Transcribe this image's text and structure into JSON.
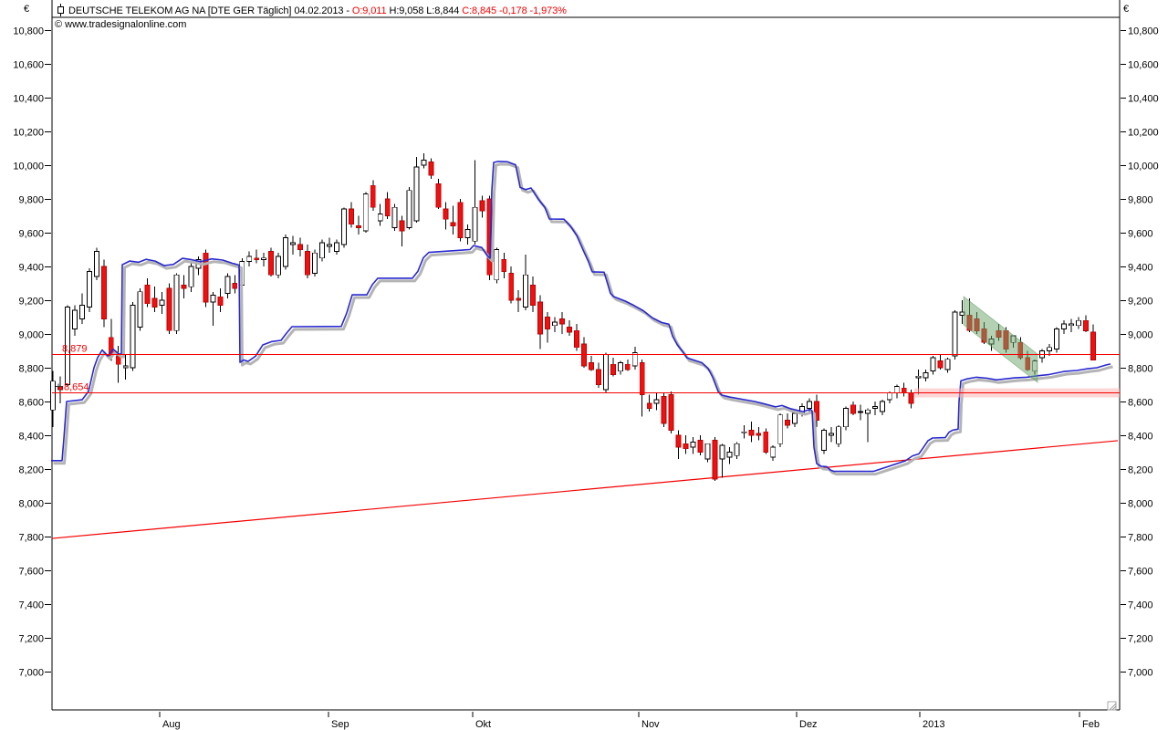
{
  "header": {
    "currency_left": "€",
    "currency_right": "€",
    "icon": "candlestick-icon",
    "title_segments": [
      {
        "text": "DEUTSCHE TELEKOM AG NA [DTE GER  Täglich] 04.02.2013 - ",
        "color": "#000000"
      },
      {
        "text": "O:9,011 ",
        "color": "#f40000"
      },
      {
        "text": "H:9,058 L:8,844 ",
        "color": "#000000"
      },
      {
        "text": "C:8,845 -0,178 -1,973%",
        "color": "#f40000"
      }
    ],
    "watermark": "© www.tradesignalonline.com"
  },
  "axes": {
    "y_ticks": [
      {
        "label": "10,800",
        "value": 10800
      },
      {
        "label": "10,600",
        "value": 10600
      },
      {
        "label": "10,400",
        "value": 10400
      },
      {
        "label": "10,200",
        "value": 10200
      },
      {
        "label": "10,000",
        "value": 10000
      },
      {
        "label": "9,800",
        "value": 9800
      },
      {
        "label": "9,600",
        "value": 9600
      },
      {
        "label": "9,400",
        "value": 9400
      },
      {
        "label": "9,200",
        "value": 9200
      },
      {
        "label": "9,000",
        "value": 9000
      },
      {
        "label": "8,800",
        "value": 8800
      },
      {
        "label": "8,600",
        "value": 8600
      },
      {
        "label": "8,400",
        "value": 8400
      },
      {
        "label": "8,200",
        "value": 8200
      },
      {
        "label": "8,000",
        "value": 8000
      },
      {
        "label": "7,800",
        "value": 7800
      },
      {
        "label": "7,600",
        "value": 7600
      },
      {
        "label": "7,400",
        "value": 7400
      },
      {
        "label": "7,200",
        "value": 7200
      },
      {
        "label": "7,000",
        "value": 7000
      }
    ],
    "x_ticks": [
      {
        "label": "Aug",
        "x": 175
      },
      {
        "label": "Sep",
        "x": 360
      },
      {
        "label": "Okt",
        "x": 518
      },
      {
        "label": "Nov",
        "x": 700
      },
      {
        "label": "Dez",
        "x": 873
      },
      {
        "label": "2013",
        "x": 1008
      },
      {
        "label": "Feb",
        "x": 1183
      }
    ]
  },
  "chart_data": {
    "type": "candlestick",
    "title": "DEUTSCHE TELEKOM AG NA [DTE GER Täglich]",
    "date": "04.02.2013",
    "last_quote": {
      "open": "9,011",
      "high": "9,058",
      "low": "8,844",
      "close": "8,845",
      "change": "-0,178",
      "change_pct": "-1,973%"
    },
    "ylim": [
      6860,
      10860
    ],
    "grid": false,
    "layout": {
      "y_top": 33,
      "y_base": 10800,
      "ppu": 0.185,
      "x_start": 58,
      "x_step": 7.972,
      "frame": {
        "left": 57,
        "right": 1227,
        "bottom": 778,
        "title_underline_y": 19
      }
    },
    "colors": {
      "up": "#ffffff",
      "down": "#f01010",
      "down_stroke": "#b40404",
      "wick": "#000000",
      "stop_line": "#2828cf",
      "stop_shadow": "#b4b4b4",
      "level": "#f40000",
      "channel_fill": "#69a369",
      "band_fill": "#ffb4b4"
    },
    "candles": [
      [
        8550,
        8780,
        8450,
        8720
      ],
      [
        8690,
        8750,
        8590,
        8670
      ],
      [
        8700,
        9170,
        8690,
        9160
      ],
      [
        9030,
        9170,
        8990,
        9140
      ],
      [
        9090,
        9240,
        9060,
        9170
      ],
      [
        9160,
        9390,
        9130,
        9370
      ],
      [
        9340,
        9510,
        9320,
        9490
      ],
      [
        9400,
        9440,
        9040,
        9090
      ],
      [
        8980,
        9090,
        8840,
        8870
      ],
      [
        8870,
        8930,
        8710,
        8820
      ],
      [
        8800,
        8880,
        8730,
        8810
      ],
      [
        8800,
        9190,
        8780,
        9170
      ],
      [
        9040,
        9270,
        9020,
        9250
      ],
      [
        9290,
        9330,
        9160,
        9180
      ],
      [
        9210,
        9280,
        9130,
        9160
      ],
      [
        9170,
        9250,
        9120,
        9200
      ],
      [
        9270,
        9300,
        9000,
        9020
      ],
      [
        9020,
        9360,
        9000,
        9350
      ],
      [
        9290,
        9350,
        9210,
        9270
      ],
      [
        9280,
        9420,
        9250,
        9400
      ],
      [
        9390,
        9460,
        9350,
        9440
      ],
      [
        9480,
        9500,
        9160,
        9190
      ],
      [
        9190,
        9250,
        9050,
        9230
      ],
      [
        9220,
        9270,
        9130,
        9170
      ],
      [
        9240,
        9360,
        9210,
        9340
      ],
      [
        9300,
        9350,
        9240,
        9270
      ],
      [
        9290,
        9450,
        9270,
        9430
      ],
      [
        9430,
        9490,
        9400,
        9460
      ],
      [
        9450,
        9500,
        9420,
        9440
      ],
      [
        9440,
        9480,
        9400,
        9450
      ],
      [
        9490,
        9510,
        9340,
        9350
      ],
      [
        9350,
        9480,
        9330,
        9460
      ],
      [
        9400,
        9590,
        9380,
        9570
      ],
      [
        9530,
        9580,
        9470,
        9540
      ],
      [
        9530,
        9570,
        9460,
        9500
      ],
      [
        9490,
        9530,
        9330,
        9350
      ],
      [
        9360,
        9500,
        9340,
        9480
      ],
      [
        9450,
        9560,
        9430,
        9540
      ],
      [
        9520,
        9570,
        9480,
        9530
      ],
      [
        9490,
        9560,
        9470,
        9540
      ],
      [
        9530,
        9750,
        9510,
        9740
      ],
      [
        9740,
        9780,
        9630,
        9650
      ],
      [
        9640,
        9700,
        9590,
        9630
      ],
      [
        9610,
        9840,
        9600,
        9830
      ],
      [
        9880,
        9910,
        9730,
        9750
      ],
      [
        9670,
        9770,
        9640,
        9710
      ],
      [
        9800,
        9840,
        9680,
        9700
      ],
      [
        9630,
        9770,
        9610,
        9750
      ],
      [
        9670,
        9700,
        9520,
        9610
      ],
      [
        9630,
        9870,
        9620,
        9850
      ],
      [
        9670,
        10050,
        9660,
        9990
      ],
      [
        10000,
        10070,
        9980,
        10030
      ],
      [
        10020,
        10040,
        9920,
        9940
      ],
      [
        9890,
        9920,
        9740,
        9750
      ],
      [
        9740,
        9780,
        9620,
        9680
      ],
      [
        9660,
        9760,
        9590,
        9640
      ],
      [
        9780,
        9800,
        9550,
        9570
      ],
      [
        9570,
        9650,
        9530,
        9620
      ],
      [
        9550,
        10030,
        9530,
        9750
      ],
      [
        9790,
        9820,
        9690,
        9730
      ],
      [
        9800,
        9820,
        9320,
        9350
      ],
      [
        9320,
        9510,
        9300,
        9500
      ],
      [
        9440,
        9480,
        9330,
        9370
      ],
      [
        9360,
        9400,
        9180,
        9200
      ],
      [
        9210,
        9260,
        9130,
        9200
      ],
      [
        9160,
        9470,
        9140,
        9350
      ],
      [
        9290,
        9340,
        9130,
        9170
      ],
      [
        9190,
        9230,
        8910,
        9000
      ],
      [
        9100,
        9130,
        8950,
        9030
      ],
      [
        9050,
        9100,
        9010,
        9070
      ],
      [
        9090,
        9130,
        9000,
        9060
      ],
      [
        9040,
        9080,
        8990,
        9010
      ],
      [
        9020,
        9060,
        8900,
        8920
      ],
      [
        8940,
        8980,
        8800,
        8810
      ],
      [
        8830,
        8870,
        8780,
        8790
      ],
      [
        8790,
        8830,
        8680,
        8700
      ],
      [
        8670,
        8890,
        8650,
        8880
      ],
      [
        8820,
        8860,
        8750,
        8760
      ],
      [
        8780,
        8840,
        8760,
        8830
      ],
      [
        8820,
        8850,
        8780,
        8790
      ],
      [
        8810,
        8924,
        8790,
        8890
      ],
      [
        8830,
        8850,
        8510,
        8640
      ],
      [
        8590,
        8640,
        8540,
        8560
      ],
      [
        8590,
        8650,
        8550,
        8610
      ],
      [
        8630,
        8650,
        8450,
        8470
      ],
      [
        8640,
        8660,
        8410,
        8430
      ],
      [
        8400,
        8430,
        8260,
        8330
      ],
      [
        8350,
        8400,
        8290,
        8320
      ],
      [
        8330,
        8390,
        8290,
        8360
      ],
      [
        8370,
        8400,
        8280,
        8300
      ],
      [
        8260,
        8350,
        8240,
        8350
      ],
      [
        8370,
        8390,
        8130,
        8140
      ],
      [
        8260,
        8350,
        8150,
        8340
      ],
      [
        8270,
        8330,
        8230,
        8300
      ],
      [
        8280,
        8360,
        8260,
        8350
      ],
      [
        8420,
        8460,
        8380,
        8420
      ],
      [
        8430,
        8480,
        8360,
        8400
      ],
      [
        8410,
        8450,
        8370,
        8400
      ],
      [
        8420,
        8440,
        8290,
        8300
      ],
      [
        8270,
        8340,
        8250,
        8330
      ],
      [
        8350,
        8530,
        8330,
        8520
      ],
      [
        8490,
        8530,
        8440,
        8460
      ],
      [
        8470,
        8540,
        8450,
        8530
      ],
      [
        8530,
        8590,
        8510,
        8570
      ],
      [
        8560,
        8620,
        8540,
        8600
      ],
      [
        8600,
        8640,
        8450,
        8490
      ],
      [
        8310,
        8440,
        8290,
        8430
      ],
      [
        8400,
        8450,
        8360,
        8410
      ],
      [
        8350,
        8460,
        8330,
        8450
      ],
      [
        8450,
        8570,
        8430,
        8560
      ],
      [
        8580,
        8600,
        8520,
        8530
      ],
      [
        8540,
        8580,
        8490,
        8540
      ],
      [
        8530,
        8560,
        8360,
        8550
      ],
      [
        8560,
        8600,
        8520,
        8570
      ],
      [
        8540,
        8610,
        8520,
        8600
      ],
      [
        8610,
        8660,
        8590,
        8650
      ],
      [
        8650,
        8700,
        8620,
        8690
      ],
      [
        8680,
        8710,
        8630,
        8650
      ],
      [
        8650,
        8670,
        8560,
        8590
      ],
      [
        8740,
        8790,
        8640,
        8750
      ],
      [
        8740,
        8790,
        8720,
        8770
      ],
      [
        8780,
        8870,
        8760,
        8860
      ],
      [
        8840,
        8880,
        8790,
        8800
      ],
      [
        8790,
        8860,
        8770,
        8850
      ],
      [
        8870,
        9140,
        8850,
        9130
      ],
      [
        9110,
        9200,
        9060,
        9130
      ],
      [
        9110,
        9210,
        9010,
        9020
      ],
      [
        9090,
        9130,
        9000,
        9020
      ],
      [
        9030,
        9070,
        8940,
        8950
      ],
      [
        8940,
        8990,
        8900,
        8970
      ],
      [
        9020,
        9060,
        8960,
        8980
      ],
      [
        9020,
        9040,
        8890,
        8910
      ],
      [
        8950,
        8990,
        8920,
        8990
      ],
      [
        8950,
        8980,
        8850,
        8860
      ],
      [
        8860,
        8900,
        8780,
        8790
      ],
      [
        8780,
        8850,
        8760,
        8840
      ],
      [
        8860,
        8910,
        8830,
        8900
      ],
      [
        8900,
        8940,
        8870,
        8920
      ],
      [
        8910,
        9040,
        8890,
        9030
      ],
      [
        9030,
        9080,
        9000,
        9060
      ],
      [
        9050,
        9090,
        9010,
        9060
      ],
      [
        9050,
        9100,
        9030,
        9080
      ],
      [
        9080,
        9110,
        9010,
        9020
      ],
      [
        9011,
        9058,
        8844,
        8845
      ]
    ],
    "stop_line_points": [
      [
        56,
        8250
      ],
      [
        68,
        8250
      ],
      [
        70,
        8380
      ],
      [
        73,
        8600
      ],
      [
        90,
        8610
      ],
      [
        97,
        8660
      ],
      [
        103,
        8800
      ],
      [
        107,
        8860
      ],
      [
        112,
        8905
      ],
      [
        118,
        8870
      ],
      [
        124,
        8910
      ],
      [
        130,
        8882
      ],
      [
        133,
        8880
      ],
      [
        134,
        9410
      ],
      [
        142,
        9432
      ],
      [
        152,
        9425
      ],
      [
        160,
        9442
      ],
      [
        170,
        9432
      ],
      [
        180,
        9405
      ],
      [
        190,
        9412
      ],
      [
        200,
        9448
      ],
      [
        210,
        9440
      ],
      [
        220,
        9428
      ],
      [
        232,
        9445
      ],
      [
        244,
        9438
      ],
      [
        254,
        9420
      ],
      [
        262,
        9408
      ],
      [
        263,
        8832
      ],
      [
        267,
        8846
      ],
      [
        272,
        8838
      ],
      [
        280,
        8868
      ],
      [
        288,
        8935
      ],
      [
        298,
        8955
      ],
      [
        308,
        8962
      ],
      [
        314,
        9005
      ],
      [
        320,
        9043
      ],
      [
        374,
        9045
      ],
      [
        380,
        9125
      ],
      [
        386,
        9232
      ],
      [
        402,
        9232
      ],
      [
        408,
        9292
      ],
      [
        414,
        9330
      ],
      [
        452,
        9330
      ],
      [
        458,
        9372
      ],
      [
        464,
        9452
      ],
      [
        470,
        9483
      ],
      [
        515,
        9500
      ],
      [
        519,
        9524
      ],
      [
        528,
        9512
      ],
      [
        534,
        9465
      ],
      [
        537,
        9448
      ],
      [
        539,
        9850
      ],
      [
        541,
        10016
      ],
      [
        546,
        10022
      ],
      [
        556,
        10020
      ],
      [
        565,
        10002
      ],
      [
        570,
        9868
      ],
      [
        576,
        9855
      ],
      [
        582,
        9865
      ],
      [
        590,
        9798
      ],
      [
        597,
        9751
      ],
      [
        602,
        9681
      ],
      [
        618,
        9680
      ],
      [
        625,
        9640
      ],
      [
        632,
        9584
      ],
      [
        639,
        9498
      ],
      [
        645,
        9427
      ],
      [
        649,
        9368
      ],
      [
        662,
        9366
      ],
      [
        666,
        9295
      ],
      [
        669,
        9240
      ],
      [
        673,
        9220
      ],
      [
        685,
        9195
      ],
      [
        695,
        9168
      ],
      [
        705,
        9138
      ],
      [
        715,
        9095
      ],
      [
        725,
        9068
      ],
      [
        733,
        9058
      ],
      [
        737,
        8988
      ],
      [
        742,
        8938
      ],
      [
        748,
        8896
      ],
      [
        753,
        8858
      ],
      [
        769,
        8830
      ],
      [
        776,
        8796
      ],
      [
        781,
        8744
      ],
      [
        787,
        8660
      ],
      [
        791,
        8638
      ],
      [
        800,
        8626
      ],
      [
        827,
        8600
      ],
      [
        836,
        8588
      ],
      [
        850,
        8568
      ],
      [
        857,
        8576
      ],
      [
        866,
        8558
      ],
      [
        880,
        8540
      ],
      [
        888,
        8554
      ],
      [
        890,
        8544
      ],
      [
        892,
        8330
      ],
      [
        895,
        8232
      ],
      [
        900,
        8216
      ],
      [
        906,
        8214
      ],
      [
        910,
        8194
      ],
      [
        914,
        8186
      ],
      [
        957,
        8186
      ],
      [
        975,
        8218
      ],
      [
        992,
        8248
      ],
      [
        1000,
        8278
      ],
      [
        1007,
        8290
      ],
      [
        1012,
        8328
      ],
      [
        1017,
        8368
      ],
      [
        1022,
        8384
      ],
      [
        1036,
        8386
      ],
      [
        1040,
        8418
      ],
      [
        1044,
        8430
      ],
      [
        1050,
        8436
      ],
      [
        1051,
        8600
      ],
      [
        1053,
        8722
      ],
      [
        1060,
        8734
      ],
      [
        1070,
        8744
      ],
      [
        1082,
        8738
      ],
      [
        1092,
        8728
      ],
      [
        1102,
        8734
      ],
      [
        1112,
        8740
      ],
      [
        1125,
        8744
      ],
      [
        1136,
        8752
      ],
      [
        1150,
        8760
      ],
      [
        1166,
        8778
      ],
      [
        1180,
        8784
      ],
      [
        1192,
        8794
      ],
      [
        1202,
        8800
      ],
      [
        1212,
        8816
      ],
      [
        1217,
        8822
      ]
    ],
    "levels": [
      {
        "label": "8,879",
        "value": 8879,
        "label_x": 68,
        "marker": false,
        "band": null
      },
      {
        "label": "8,654",
        "value": 8654,
        "label_x": 70,
        "marker": true,
        "band": {
          "x1": 1002,
          "x2": 1227,
          "half_height": 5
        }
      }
    ],
    "trendline": {
      "x1": 57,
      "p1": 7789,
      "x2": 1225,
      "p2": 8368
    },
    "channel": {
      "x1": 1056,
      "x2": 1137,
      "top1": 9222,
      "top2": 8881,
      "bot1": 9054,
      "bot2": 8713
    }
  },
  "misc": {
    "resize_grip": "resize-grip"
  }
}
